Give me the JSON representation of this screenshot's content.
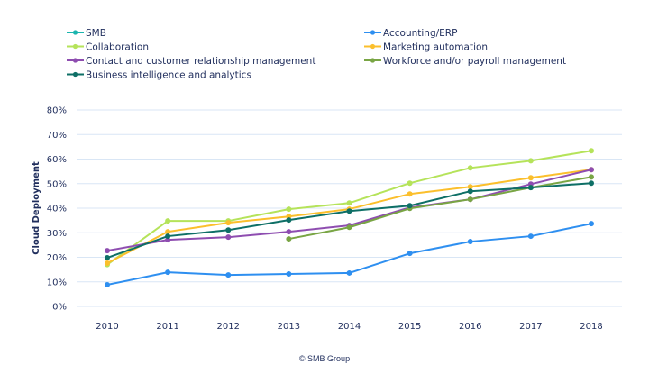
{
  "chart_data": {
    "type": "line",
    "title": "",
    "xlabel": "",
    "ylabel": "Cloud Deployment",
    "ylim": [
      0,
      80
    ],
    "y_ticks": [
      "0%",
      "10%",
      "20%",
      "30%",
      "40%",
      "50%",
      "60%",
      "70%",
      "80%"
    ],
    "y_tick_values": [
      0,
      10,
      20,
      30,
      40,
      50,
      60,
      70,
      80
    ],
    "grid": "horizontal",
    "legend_position": "top",
    "x": [
      "2010",
      "2011",
      "2012",
      "2013",
      "2014",
      "2015",
      "2016",
      "2017",
      "2018"
    ],
    "series": [
      {
        "name": "SMB",
        "color": "#1bb5ae",
        "values": [
          null,
          null,
          null,
          null,
          null,
          null,
          null,
          null,
          null
        ]
      },
      {
        "name": "Accounting/ERP",
        "color": "#2e8ff0",
        "values": [
          8.8,
          13.9,
          12.8,
          13.2,
          13.6,
          21.6,
          26.4,
          28.6,
          33.7
        ]
      },
      {
        "name": "Collaboration",
        "color": "#b5e35a",
        "values": [
          17.0,
          34.8,
          34.8,
          39.6,
          42.1,
          50.2,
          56.4,
          59.3,
          63.4
        ]
      },
      {
        "name": "Marketing automation",
        "color": "#fbbf2c",
        "values": [
          17.6,
          30.4,
          34.1,
          36.6,
          39.6,
          45.8,
          48.7,
          52.4,
          55.7
        ]
      },
      {
        "name": "Contact and customer relationship management",
        "color": "#8e4db0",
        "values": [
          22.7,
          27.1,
          28.2,
          30.4,
          33.0,
          40.3,
          43.6,
          49.8,
          55.7
        ]
      },
      {
        "name": "Workforce and/or payroll management",
        "color": "#79a544",
        "values": [
          null,
          null,
          null,
          27.5,
          32.2,
          39.9,
          43.6,
          48.4,
          52.7
        ]
      },
      {
        "name": "Business intelligence and analytics",
        "color": "#0e6f66",
        "values": [
          19.8,
          28.6,
          31.1,
          35.2,
          38.8,
          41.0,
          46.9,
          48.4,
          50.2
        ]
      }
    ],
    "footer": "© SMB Group"
  },
  "colors": {
    "gridline": "#d9e6f5",
    "text": "#1f2d5c"
  }
}
